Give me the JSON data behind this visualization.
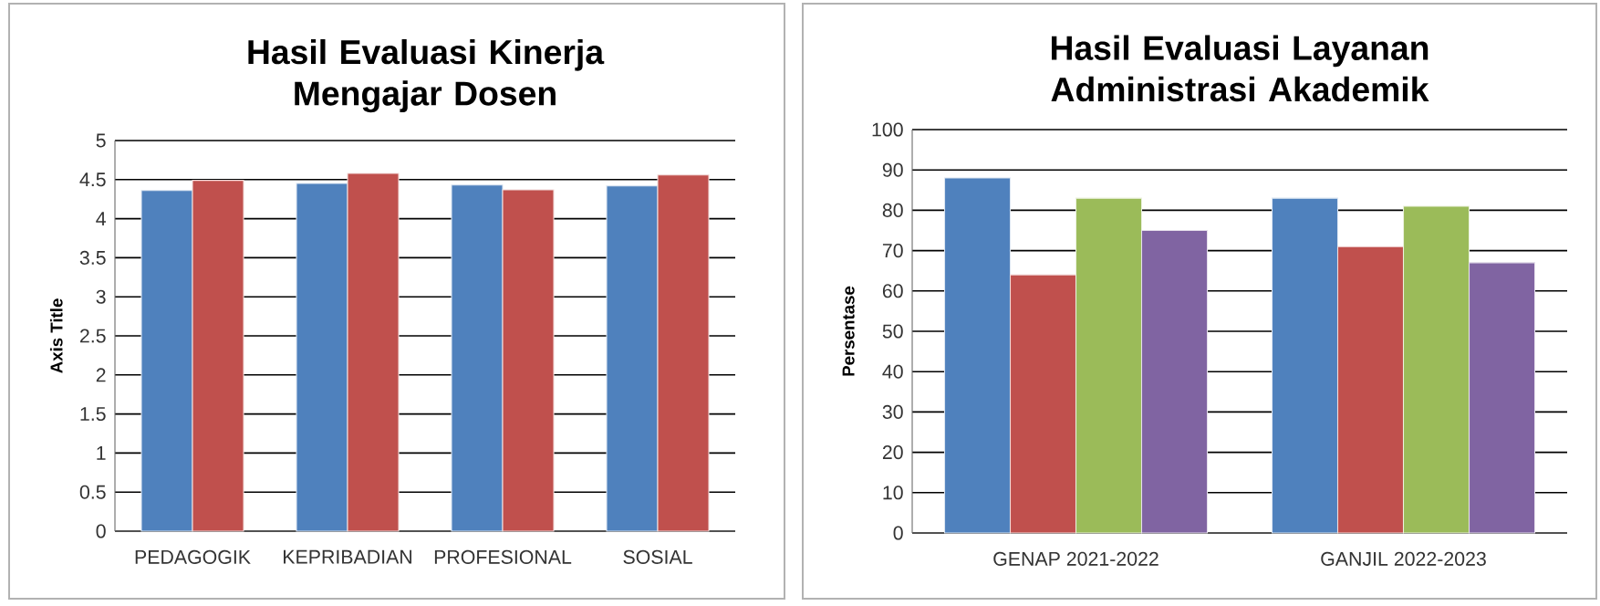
{
  "chart_data": [
    {
      "type": "bar",
      "title": "Hasil Evaluasi Kinerja Mengajar Dosen",
      "ylabel": "Axis Title",
      "categories": [
        "PEDAGOGIK",
        "KEPRIBADIAN",
        "PROFESIONAL",
        "SOSIAL"
      ],
      "series": [
        {
          "color": "#4f81bd",
          "values": [
            4.36,
            4.45,
            4.43,
            4.42
          ]
        },
        {
          "color": "#c0504d",
          "values": [
            4.49,
            4.58,
            4.37,
            4.56
          ]
        }
      ],
      "ylim": [
        0,
        5
      ],
      "yticks": [
        0,
        0.5,
        1,
        1.5,
        2,
        2.5,
        3,
        3.5,
        4,
        4.5,
        5
      ],
      "grid": "y"
    },
    {
      "type": "bar",
      "title": "Hasil Evaluasi Layanan Administrasi Akademik",
      "ylabel": "Persentase",
      "categories": [
        "GENAP 2021-2022",
        "GANJIL 2022-2023"
      ],
      "series": [
        {
          "color": "#4f81bd",
          "values": [
            88,
            83
          ]
        },
        {
          "color": "#c0504d",
          "values": [
            64,
            71
          ]
        },
        {
          "color": "#9bbb59",
          "values": [
            83,
            81
          ]
        },
        {
          "color": "#8064a2",
          "values": [
            75,
            67
          ]
        }
      ],
      "ylim": [
        0,
        100
      ],
      "yticks": [
        0,
        10,
        20,
        30,
        40,
        50,
        60,
        70,
        80,
        90,
        100
      ],
      "grid": "y"
    }
  ]
}
